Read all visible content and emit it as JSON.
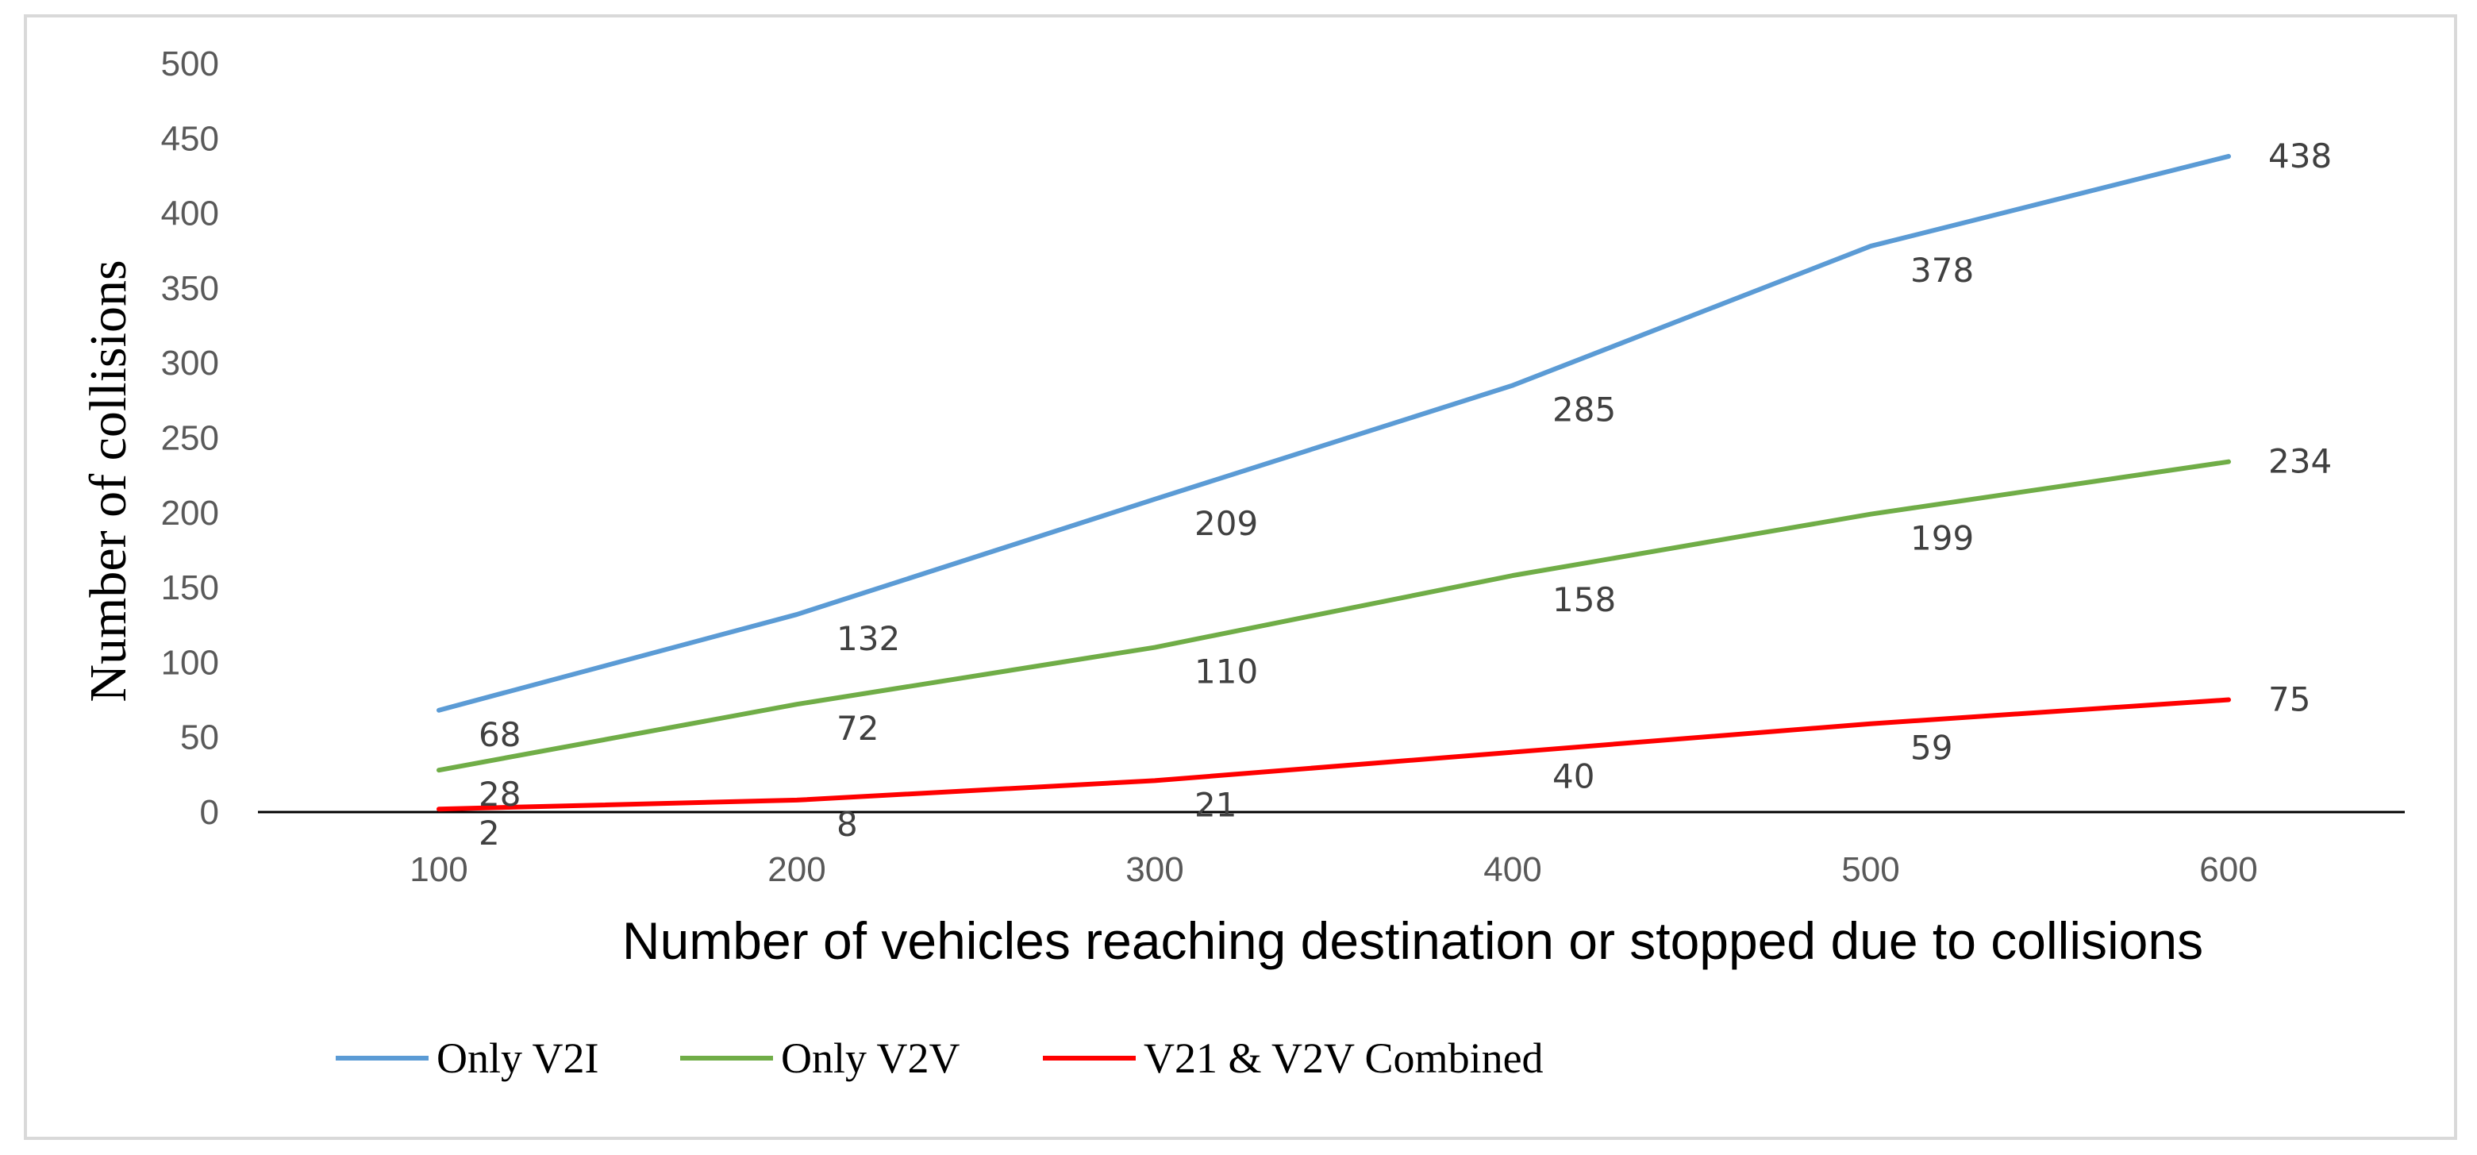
{
  "chart_data": {
    "type": "line",
    "title": "",
    "xlabel": "Number of vehicles reaching destination or stopped due to collisions",
    "ylabel": "Number of collisions",
    "x": [
      100,
      200,
      300,
      400,
      500,
      600
    ],
    "x_tick_labels": [
      "100",
      "200",
      "300",
      "400",
      "500",
      "600"
    ],
    "ylim": [
      0,
      500
    ],
    "y_ticks": [
      0,
      50,
      100,
      150,
      200,
      250,
      300,
      350,
      400,
      450,
      500
    ],
    "grid": false,
    "legend_position": "bottom",
    "series": [
      {
        "name": "Only V2I",
        "color": "#5b9bd5",
        "values": [
          68,
          132,
          209,
          285,
          378,
          438
        ]
      },
      {
        "name": "Only V2V",
        "color": "#70ad47",
        "values": [
          28,
          72,
          110,
          158,
          199,
          234
        ]
      },
      {
        "name": "V21 & V2V Combined",
        "color": "#ff0000",
        "values": [
          2,
          8,
          21,
          40,
          59,
          75
        ]
      }
    ]
  }
}
